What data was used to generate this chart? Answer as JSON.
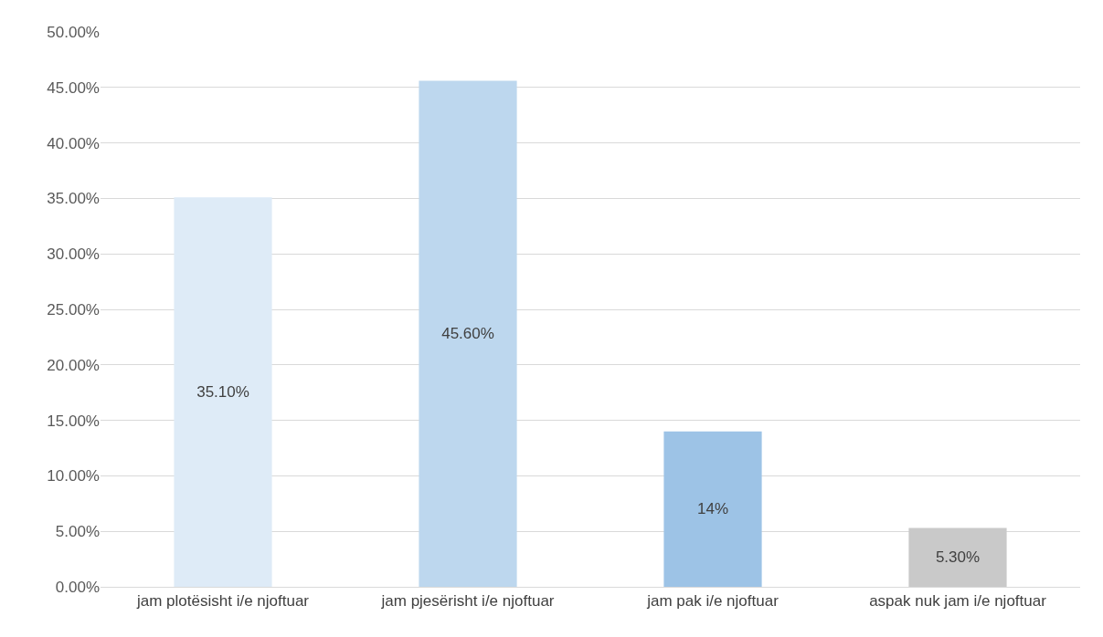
{
  "chart_data": {
    "type": "bar",
    "categories": [
      "jam plotësisht i/e njoftuar",
      "jam pjesërisht i/e njoftuar",
      "jam pak i/e njoftuar",
      "aspak nuk jam i/e njoftuar"
    ],
    "values": [
      35.1,
      45.6,
      14,
      5.3
    ],
    "colors": [
      "#deebf7",
      "#bdd7ee",
      "#9dc3e6",
      "#c9c9c9"
    ],
    "value_labels": [
      "35.10%",
      "45.60%",
      "14%",
      "5.30%"
    ],
    "ylim": [
      0,
      50
    ],
    "yticks": [
      {
        "value": 0,
        "label": "0.00%"
      },
      {
        "value": 5,
        "label": "5.00%"
      },
      {
        "value": 10,
        "label": "10.00%"
      },
      {
        "value": 15,
        "label": "15.00%"
      },
      {
        "value": 20,
        "label": "20.00%"
      },
      {
        "value": 25,
        "label": "25.00%"
      },
      {
        "value": 30,
        "label": "30.00%"
      },
      {
        "value": 35,
        "label": "35.00%"
      },
      {
        "value": 40,
        "label": "40.00%"
      },
      {
        "value": 45,
        "label": "45.00%"
      },
      {
        "value": 50,
        "label": "50.00%"
      }
    ],
    "grid": "y"
  }
}
